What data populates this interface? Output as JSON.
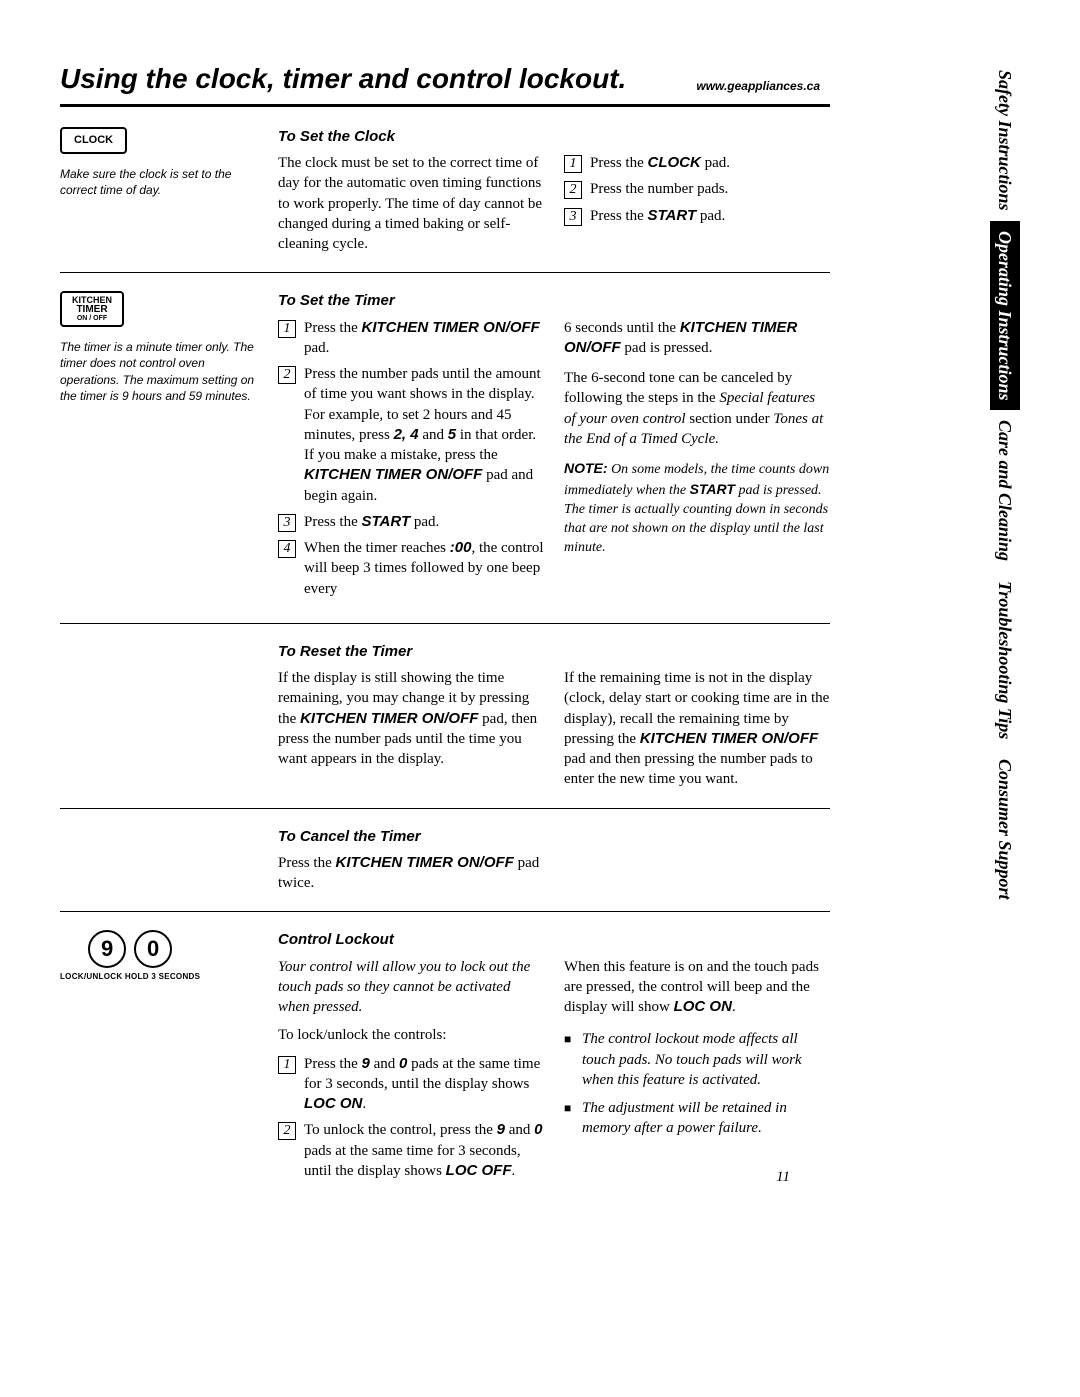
{
  "header": {
    "title": "Using the clock, timer and control lockout.",
    "url": "www.geappliances.ca"
  },
  "tabs": [
    {
      "label": "Safety Instructions",
      "active": false
    },
    {
      "label": "Operating Instructions",
      "active": true
    },
    {
      "label": "Care and Cleaning",
      "active": false
    },
    {
      "label": "Troubleshooting Tips",
      "active": false
    },
    {
      "label": "Consumer Support",
      "active": false
    }
  ],
  "clock": {
    "button": "CLOCK",
    "caption": "Make sure the clock is set to the correct time of day.",
    "heading": "To Set the Clock",
    "intro": "The clock must be set to the correct time of day for the automatic oven timing functions to work properly. The time of day cannot be changed during a timed baking or self-cleaning cycle.",
    "steps": [
      {
        "n": "1",
        "pre": "Press the ",
        "bold": "CLOCK",
        "post": " pad."
      },
      {
        "n": "2",
        "pre": "Press the number pads.",
        "bold": "",
        "post": ""
      },
      {
        "n": "3",
        "pre": "Press the ",
        "bold": "START",
        "post": " pad."
      }
    ]
  },
  "timer": {
    "button_l1": "KITCHEN",
    "button_l2": "TIMER",
    "button_l3": "ON / OFF",
    "caption": "The timer is a minute timer only. The timer does not control oven operations. The maximum setting on the timer is 9 hours and 59 minutes.",
    "heading": "To Set the Timer",
    "left_steps": {
      "s1": {
        "n": "1",
        "html": "Press the <span class=\"arbi\">KITCHEN TIMER ON/OFF</span> pad."
      },
      "s2": {
        "n": "2",
        "html": "Press the number pads until the amount of time you want shows in the display. For example, to set 2 hours and 45 minutes, press <span class=\"arbi\">2, 4</span> and <span class=\"arbi\">5</span> in that order. If you make a mistake, press the <span class=\"arbi\">KITCHEN TIMER ON/OFF</span> pad and begin again."
      },
      "s3": {
        "n": "3",
        "html": "Press the <span class=\"arbi\">START</span> pad."
      },
      "s4": {
        "n": "4",
        "html": "When the timer reaches <span class=\"arbi\">:00</span>, the control will beep 3 times followed by one beep every"
      }
    },
    "right_top": "6 seconds until the <span class=\"arbi\">KITCHEN TIMER ON/OFF</span> pad is pressed.",
    "right_p": "The 6-second tone can be canceled by following the steps in the <span class=\"note-it\">Special features of your oven control</span> section under <span class=\"note-it\">Tones at the End of a Timed Cycle.</span>",
    "note": "<span class=\"arbi\">NOTE:</span> <span class=\"note-it\">On some models, the time counts down immediately when the</span> <span class=\"arbi\">START</span> <span class=\"note-it\">pad is pressed. The timer is actually counting down in seconds that are not shown on the display until the last minute.</span>"
  },
  "reset": {
    "heading": "To Reset the Timer",
    "left": "If the display is still showing the time remaining, you may change it by pressing the <span class=\"arbi\">KITCHEN TIMER ON/OFF</span> pad, then press the number pads until the time you want appears in the display.",
    "right": "If the remaining time is not in the display (clock, delay start or cooking time are in the display), recall the remaining time by pressing the <span class=\"arbi\">KITCHEN TIMER ON/OFF</span> pad and then pressing the number pads to enter the new time you want."
  },
  "cancel": {
    "heading": "To Cancel the Timer",
    "text": "Press the <span class=\"arbi\">KITCHEN TIMER ON/OFF</span> pad twice."
  },
  "lockout": {
    "pad1": "9",
    "pad2": "0",
    "pad_caption": "LOCK/UNLOCK HOLD 3 SECONDS",
    "heading": "Control Lockout",
    "intro": "Your control will allow you to lock out the touch pads so they cannot be activated when pressed.",
    "lead": "To lock/unlock the controls:",
    "s1": {
      "n": "1",
      "html": "Press the <span class=\"arbi\">9</span> and <span class=\"arbi\">0</span> pads at the same time for 3 seconds, until the display shows <span class=\"arbi\">LOC ON</span>."
    },
    "s2": {
      "n": "2",
      "html": "To unlock the control, press the <span class=\"arbi\">9</span> and <span class=\"arbi\">0</span> pads at the same time for 3 seconds, until the display shows <span class=\"arbi\">LOC OFF</span>."
    },
    "right_p": "When this feature is on and the touch pads are pressed, the control will beep and the display will show <span class=\"arbi\">LOC ON</span>.",
    "bullets": [
      "The control lockout mode affects all touch pads. No touch pads will work when this feature is activated.",
      "The adjustment will be retained in memory after a power failure."
    ]
  },
  "pagenum": "11"
}
